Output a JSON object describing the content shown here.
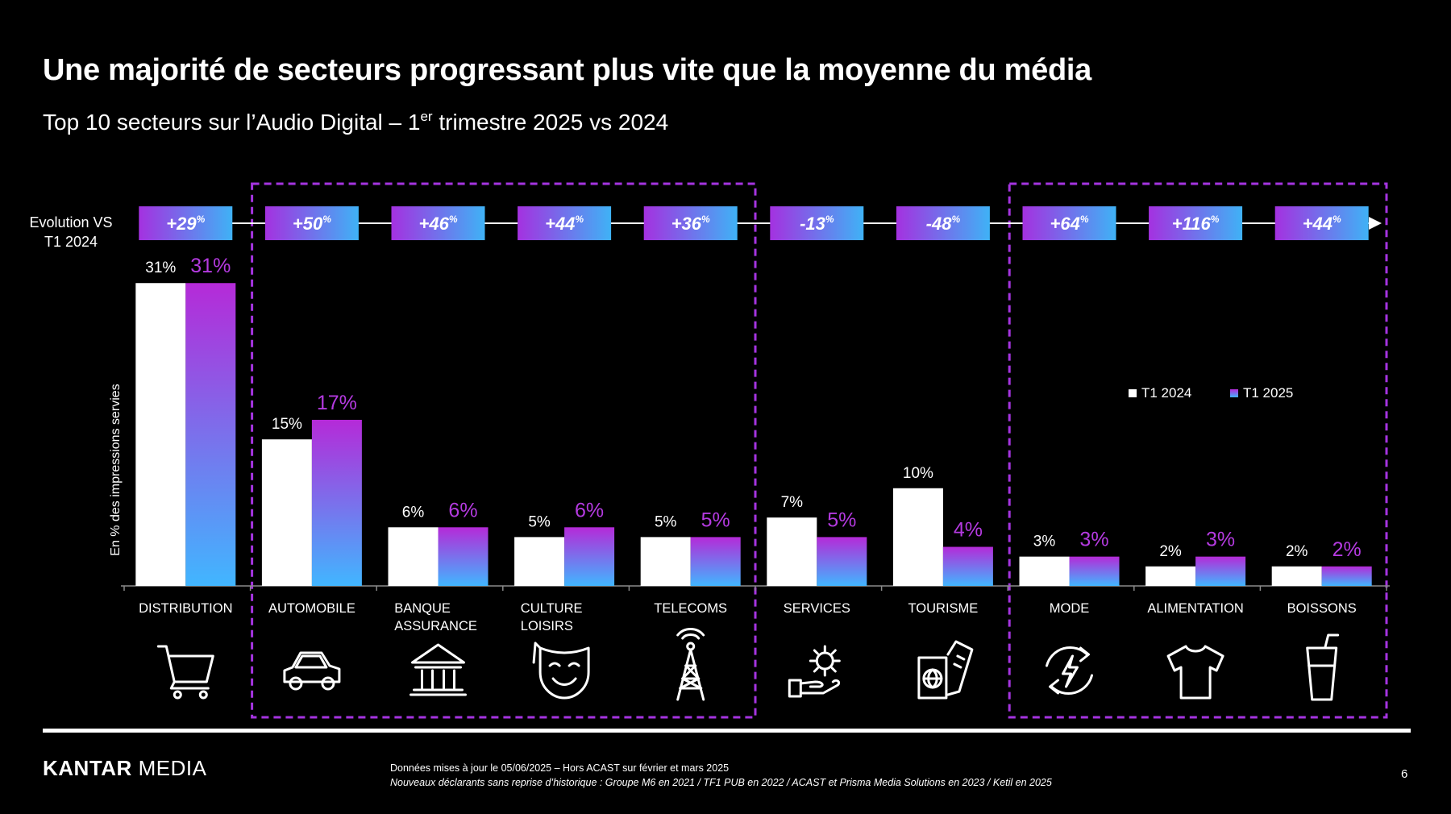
{
  "title": "Une majorité de secteurs progressant plus vite que la moyenne du média",
  "subtitle": {
    "prefix": "Top 10 secteurs sur l’Audio Digital – 1",
    "sup": "er",
    "suffix": " trimestre 2025 vs 2024"
  },
  "evolution_label": [
    "Evolution VS",
    "T1 2024"
  ],
  "yaxis_label": "En % des impressions servies",
  "legend": [
    {
      "name": "T1 2024",
      "color": "#ffffff"
    },
    {
      "name": "T1 2025",
      "color": "#8a3fe0"
    }
  ],
  "colors": {
    "series_2025_top": "#b52ad8",
    "series_2025_bottom": "#41b6ff",
    "series_2024": "#ffffff",
    "highlight_label": "#b43ae0",
    "dashed_frame": "#a534e0"
  },
  "chart_data": {
    "type": "bar",
    "categories": [
      [
        "DISTRIBUTION"
      ],
      [
        "AUTOMOBILE"
      ],
      [
        "BANQUE",
        "ASSURANCE"
      ],
      [
        "CULTURE",
        "LOISIRS"
      ],
      [
        "TELECOMS"
      ],
      [
        "SERVICES"
      ],
      [
        "TOURISME"
      ],
      [
        "MODE"
      ],
      [
        "ALIMENTATION"
      ],
      [
        "BOISSONS"
      ]
    ],
    "series": [
      {
        "name": "T1 2024",
        "values": [
          31,
          15,
          6,
          5,
          5,
          7,
          10,
          3,
          2,
          2
        ],
        "labels": [
          "31%",
          "15%",
          "6%",
          "5%",
          "5%",
          "7%",
          "10%",
          "3%",
          "2%",
          "2%"
        ]
      },
      {
        "name": "T1 2025",
        "values": [
          31,
          17,
          6,
          6,
          5,
          5,
          4,
          3,
          3,
          2
        ],
        "labels": [
          "31%",
          "17%",
          "6%",
          "6%",
          "5%",
          "5%",
          "4%",
          "3%",
          "3%",
          "2%"
        ]
      }
    ],
    "evolution": [
      {
        "value": "+29",
        "unit": "%"
      },
      {
        "value": "+50",
        "unit": "%"
      },
      {
        "value": "+46",
        "unit": "%"
      },
      {
        "value": "+44",
        "unit": "%"
      },
      {
        "value": "+36",
        "unit": "%"
      },
      {
        "value": "-13",
        "unit": "%"
      },
      {
        "value": "-48",
        "unit": "%"
      },
      {
        "value": "+64",
        "unit": "%"
      },
      {
        "value": "+116",
        "unit": "%"
      },
      {
        "value": "+44",
        "unit": "%"
      }
    ],
    "icons": [
      "cart-icon",
      "car-icon",
      "bank-icon",
      "theater-mask-icon",
      "antenna-tower-icon",
      "hand-gear-icon",
      "passport-ticket-icon",
      "cycle-bolt-icon",
      "tshirt-icon",
      "drink-glass-icon"
    ],
    "highlight_groups": [
      [
        1,
        4
      ],
      [
        7,
        9
      ]
    ],
    "ylim": [
      0,
      33
    ],
    "legend_position": "right",
    "grid": false
  },
  "footer": {
    "brand_bold": "KANTAR",
    "brand_rest": " MEDIA",
    "note_line1": "Données mises à jour le 05/06/2025 – Hors ACAST sur février  et mars 2025",
    "note_line2": "Nouveaux déclarants sans reprise d’historique : Groupe M6 en 2021  / TF1 PUB en 2022 /  ACAST et Prisma Media Solutions en 2023 / Ketil en 2025",
    "page_number": "6"
  }
}
